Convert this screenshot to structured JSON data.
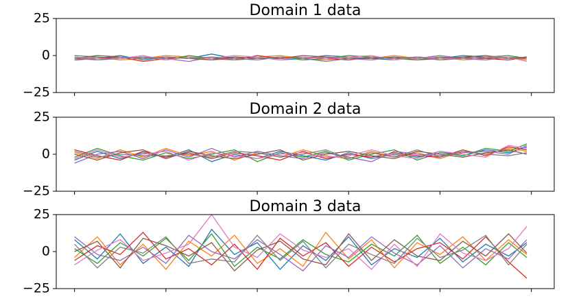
{
  "chart_data": [
    {
      "type": "line",
      "title": "Domain 1 data",
      "x": [
        0,
        5,
        10,
        15,
        20,
        25,
        30,
        35,
        40,
        45,
        50,
        55,
        60,
        65,
        70,
        75,
        80,
        85,
        90,
        95,
        99
      ],
      "xlim": [
        -4,
        105
      ],
      "xticks": [
        0,
        20,
        40,
        60,
        80,
        100
      ],
      "ylim": [
        -25,
        25
      ],
      "yticks": [
        {
          "value": -25,
          "label": "−25"
        },
        0,
        25
      ],
      "series": [
        {
          "color": "#1f77b4",
          "values": [
            -1,
            -2,
            0,
            -3,
            -1,
            -2,
            1,
            -2,
            -1,
            -3,
            -2,
            0,
            -1,
            -2,
            -3,
            -1,
            -2,
            0,
            -1,
            -2,
            -1
          ]
        },
        {
          "color": "#ff7f0e",
          "values": [
            -2,
            -1,
            -3,
            -2,
            0,
            -1,
            -3,
            -2,
            -1,
            0,
            -2,
            -3,
            -1,
            -2,
            0,
            -2,
            -1,
            -3,
            -2,
            -1,
            -3
          ]
        },
        {
          "color": "#2ca02c",
          "values": [
            0,
            -1,
            -2,
            -1,
            -3,
            0,
            -2,
            -1,
            -2,
            -1,
            -3,
            -2,
            0,
            -1,
            -2,
            -3,
            -1,
            -2,
            -1,
            0,
            -2
          ]
        },
        {
          "color": "#d62728",
          "values": [
            -3,
            -2,
            -1,
            -4,
            -2,
            -1,
            -2,
            -3,
            0,
            -2,
            -1,
            -2,
            -3,
            -1,
            -2,
            -1,
            -3,
            -1,
            -2,
            -3,
            -1
          ]
        },
        {
          "color": "#9467bd",
          "values": [
            -1,
            -3,
            -2,
            -1,
            -2,
            -4,
            -1,
            -2,
            -3,
            -1,
            -2,
            -1,
            -2,
            -3,
            -1,
            -2,
            0,
            -2,
            -3,
            -1,
            -2
          ]
        },
        {
          "color": "#8c564b",
          "values": [
            -2,
            0,
            -1,
            -2,
            -1,
            -2,
            -3,
            -1,
            -2,
            -2,
            0,
            -1,
            -2,
            -2,
            -1,
            -3,
            -2,
            -1,
            0,
            -2,
            -1
          ]
        },
        {
          "color": "#e377c2",
          "values": [
            -1,
            -2,
            -2,
            0,
            -3,
            -1,
            -2,
            0,
            -1,
            -3,
            -1,
            -2,
            -1,
            0,
            -3,
            -1,
            -2,
            -2,
            -1,
            -1,
            -4
          ]
        },
        {
          "color": "#7f7f7f",
          "values": [
            -2,
            -3,
            -1,
            -2,
            -1,
            -2,
            -1,
            -3,
            -2,
            -1,
            -2,
            -4,
            -2,
            -1,
            -2,
            -1,
            -3,
            -2,
            -1,
            -2,
            -2
          ]
        }
      ]
    },
    {
      "type": "line",
      "title": "Domain 2 data",
      "x": [
        0,
        5,
        10,
        15,
        20,
        25,
        30,
        35,
        40,
        45,
        50,
        55,
        60,
        65,
        70,
        75,
        80,
        85,
        90,
        95,
        99
      ],
      "xlim": [
        -4,
        105
      ],
      "xticks": [
        0,
        20,
        40,
        60,
        80,
        100
      ],
      "ylim": [
        -25,
        25
      ],
      "yticks": [
        {
          "value": -25,
          "label": "−25"
        },
        0,
        25
      ],
      "series": [
        {
          "color": "#1f77b4",
          "values": [
            -4,
            2,
            -3,
            1,
            -2,
            3,
            -5,
            0,
            -3,
            2,
            -1,
            -4,
            1,
            -3,
            0,
            -2,
            2,
            -1,
            3,
            1,
            5
          ]
        },
        {
          "color": "#ff7f0e",
          "values": [
            1,
            -3,
            3,
            -2,
            4,
            -1,
            2,
            -4,
            1,
            -2,
            3,
            -1,
            -3,
            2,
            -2,
            1,
            -3,
            2,
            0,
            4,
            2
          ]
        },
        {
          "color": "#2ca02c",
          "values": [
            -2,
            4,
            -1,
            -4,
            1,
            -3,
            0,
            3,
            -5,
            1,
            -2,
            2,
            -4,
            0,
            3,
            -4,
            1,
            -1,
            4,
            2,
            7
          ]
        },
        {
          "color": "#d62728",
          "values": [
            3,
            -1,
            -4,
            2,
            -2,
            1,
            -3,
            1,
            -1,
            -4,
            2,
            -3,
            0,
            -2,
            1,
            -1,
            -2,
            3,
            -1,
            5,
            3
          ]
        },
        {
          "color": "#9467bd",
          "values": [
            -6,
            0,
            2,
            -3,
            3,
            -2,
            4,
            -2,
            2,
            -1,
            -3,
            1,
            -2,
            -5,
            2,
            0,
            -1,
            1,
            2,
            0,
            6
          ]
        },
        {
          "color": "#8c564b",
          "values": [
            0,
            -4,
            1,
            3,
            -3,
            2,
            -1,
            -3,
            0,
            3,
            -4,
            0,
            2,
            -1,
            -3,
            2,
            0,
            -2,
            1,
            3,
            0
          ]
        },
        {
          "color": "#e377c2",
          "values": [
            -3,
            3,
            -2,
            0,
            2,
            -4,
            1,
            -1,
            -3,
            0,
            1,
            -2,
            -1,
            3,
            -1,
            -3,
            2,
            0,
            -2,
            6,
            4
          ]
        },
        {
          "color": "#7f7f7f",
          "values": [
            2,
            -2,
            0,
            -1,
            -1,
            0,
            -2,
            2,
            1,
            -2,
            0,
            3,
            -3,
            1,
            -2,
            3,
            -2,
            2,
            0,
            -1,
            1
          ]
        }
      ]
    },
    {
      "type": "line",
      "title": "Domain 3 data",
      "x": [
        0,
        5,
        10,
        15,
        20,
        25,
        30,
        35,
        40,
        45,
        50,
        55,
        60,
        65,
        70,
        75,
        80,
        85,
        90,
        95,
        99
      ],
      "xlim": [
        -4,
        105
      ],
      "xticks": [
        0,
        20,
        40,
        60,
        80,
        100
      ],
      "ylim": [
        -25,
        25
      ],
      "yticks": [
        {
          "value": -25,
          "label": "−25"
        },
        0,
        25
      ],
      "series": [
        {
          "color": "#1f77b4",
          "values": [
            8,
            -5,
            12,
            -8,
            3,
            -10,
            15,
            -2,
            6,
            -12,
            4,
            -6,
            10,
            -9,
            2,
            -4,
            9,
            -7,
            5,
            -3,
            6
          ]
        },
        {
          "color": "#ff7f0e",
          "values": [
            -4,
            10,
            -9,
            5,
            -12,
            7,
            -3,
            11,
            -8,
            2,
            -10,
            13,
            -5,
            8,
            -11,
            6,
            -2,
            10,
            -6,
            8,
            -2
          ]
        },
        {
          "color": "#2ca02c",
          "values": [
            2,
            -8,
            6,
            -3,
            9,
            -6,
            12,
            -10,
            3,
            -5,
            8,
            -2,
            -7,
            5,
            -3,
            11,
            -8,
            3,
            -9,
            6,
            -4
          ]
        },
        {
          "color": "#d62728",
          "values": [
            -6,
            4,
            -2,
            13,
            -5,
            2,
            -9,
            5,
            -12,
            9,
            -3,
            6,
            -10,
            3,
            -7,
            2,
            6,
            -5,
            10,
            -7,
            -18
          ]
        },
        {
          "color": "#9467bd",
          "values": [
            10,
            -2,
            -6,
            3,
            -8,
            11,
            0,
            -5,
            8,
            -2,
            -13,
            4,
            -4,
            10,
            -1,
            -9,
            4,
            -11,
            2,
            -5,
            8
          ]
        },
        {
          "color": "#8c564b",
          "values": [
            0,
            7,
            -11,
            9,
            4,
            -3,
            6,
            -13,
            1,
            7,
            -5,
            -9,
            12,
            -6,
            8,
            -3,
            -6,
            7,
            -3,
            12,
            -1
          ]
        },
        {
          "color": "#e377c2",
          "values": [
            -9,
            1,
            8,
            -6,
            -1,
            5,
            25,
            3,
            -4,
            12,
            1,
            -4,
            2,
            -12,
            5,
            -10,
            12,
            -1,
            -6,
            2,
            17
          ]
        },
        {
          "color": "#7f7f7f",
          "values": [
            5,
            -11,
            3,
            -1,
            10,
            -8,
            -5,
            -7,
            11,
            -6,
            7,
            -11,
            5,
            -2,
            -8,
            9,
            -4,
            1,
            11,
            -9,
            5
          ]
        }
      ]
    }
  ]
}
